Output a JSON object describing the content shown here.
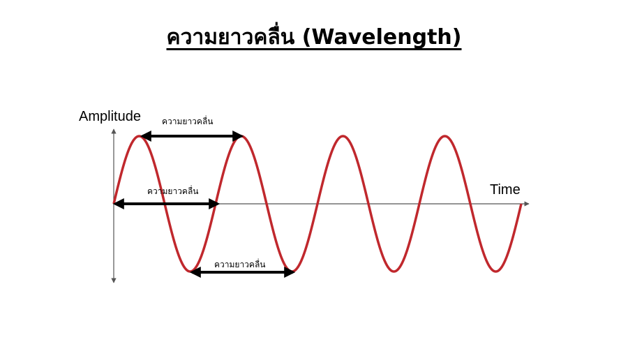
{
  "title": "ความยาวคลื่น (Wavelength)",
  "axes": {
    "y_label": "Amplitude",
    "x_label": "Time"
  },
  "wavelength_annotations": [
    {
      "label": "ความยาวคลื่น",
      "measured_between": "crest-to-crest"
    },
    {
      "label": "ความยาวคลื่น",
      "measured_between": "zero-crossing-to-zero-crossing"
    },
    {
      "label": "ความยาวคลื่น",
      "measured_between": "trough-to-trough"
    }
  ],
  "wave": {
    "cycles": 4,
    "color": "#c0282d"
  },
  "colors": {
    "axis": "#555555",
    "arrow": "#000000"
  }
}
